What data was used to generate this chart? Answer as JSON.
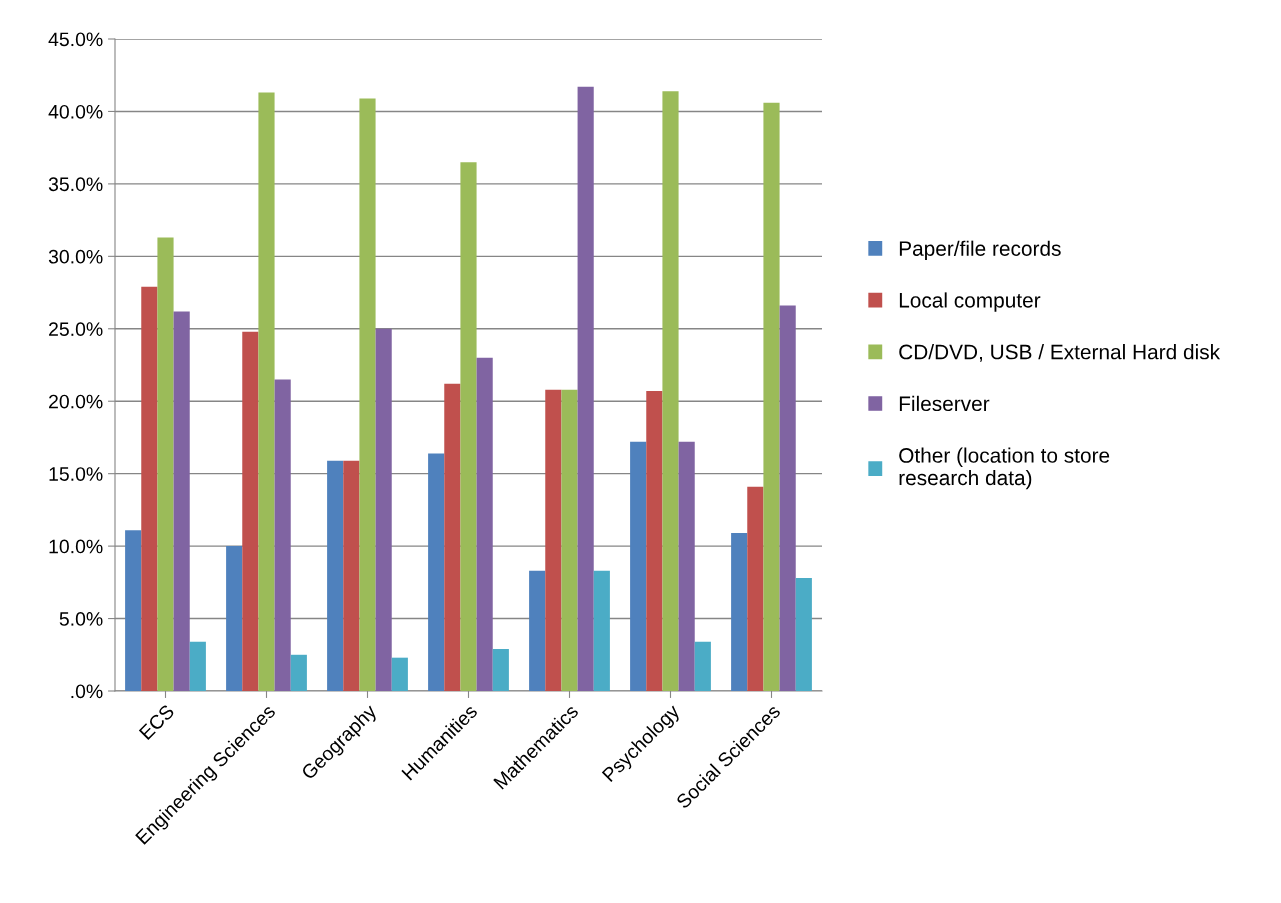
{
  "chart_data": {
    "type": "bar",
    "categories": [
      "ECS",
      "Engineering Sciences",
      "Geography",
      "Humanities",
      "Mathematics",
      "Psychology",
      "Social Sciences"
    ],
    "series": [
      {
        "name": "Paper/file records",
        "color": "#4f81bd",
        "values": [
          11.1,
          10.0,
          15.9,
          16.4,
          8.3,
          17.2,
          10.9
        ]
      },
      {
        "name": "Local computer",
        "color": "#c0504d",
        "values": [
          27.9,
          24.8,
          15.9,
          21.2,
          20.8,
          20.7,
          14.1
        ]
      },
      {
        "name": "CD/DVD, USB / External Hard disk",
        "color": "#9bbb59",
        "values": [
          31.3,
          41.3,
          40.9,
          36.5,
          20.8,
          41.4,
          40.6
        ]
      },
      {
        "name": "Fileserver",
        "color": "#8064a2",
        "values": [
          26.2,
          21.5,
          25.0,
          23.0,
          41.7,
          17.2,
          26.6
        ]
      },
      {
        "name": "Other (location to store research data)",
        "color": "#4bacc6",
        "values": [
          3.4,
          2.5,
          2.3,
          2.9,
          8.3,
          3.4,
          7.8
        ]
      }
    ],
    "ylim": [
      0,
      45
    ],
    "yticks": [
      {
        "value": 0,
        "label": ".0%"
      },
      {
        "value": 5,
        "label": "5.0%"
      },
      {
        "value": 10,
        "label": "10.0%"
      },
      {
        "value": 15,
        "label": "15.0%"
      },
      {
        "value": 20,
        "label": "20.0%"
      },
      {
        "value": 25,
        "label": "25.0%"
      },
      {
        "value": 30,
        "label": "30.0%"
      },
      {
        "value": 35,
        "label": "35.0%"
      },
      {
        "value": 40,
        "label": "40.0%"
      },
      {
        "value": 45,
        "label": "45.0%"
      }
    ],
    "grid": "y",
    "legend": "right"
  }
}
